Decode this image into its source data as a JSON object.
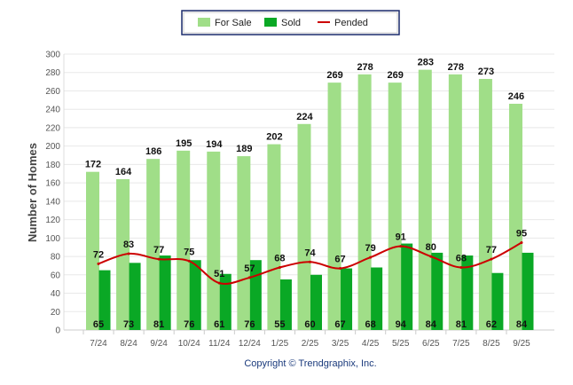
{
  "chart_data": {
    "type": "bar",
    "title": "",
    "xlabel": "",
    "ylabel": "Number of Homes",
    "ylim": [
      0,
      300
    ],
    "yticks": [
      0,
      20,
      40,
      60,
      80,
      100,
      120,
      140,
      160,
      180,
      200,
      220,
      240,
      260,
      280,
      300
    ],
    "grid": true,
    "legend_position": "top-center",
    "categories": [
      "7/24",
      "8/24",
      "9/24",
      "10/24",
      "11/24",
      "12/24",
      "1/25",
      "2/25",
      "3/25",
      "4/25",
      "5/25",
      "6/25",
      "7/25",
      "8/25",
      "9/25"
    ],
    "series": [
      {
        "name": "For Sale",
        "type": "bar",
        "color": "#a0de88",
        "values": [
          172,
          164,
          186,
          195,
          194,
          189,
          202,
          224,
          269,
          278,
          269,
          283,
          278,
          273,
          246
        ]
      },
      {
        "name": "Sold",
        "type": "bar",
        "color": "#0aa825",
        "values": [
          65,
          73,
          81,
          76,
          61,
          76,
          55,
          60,
          67,
          68,
          94,
          84,
          81,
          62,
          84
        ]
      },
      {
        "name": "Pended",
        "type": "line",
        "color": "#cc0000",
        "values": [
          72,
          83,
          77,
          75,
          51,
          57,
          68,
          74,
          67,
          79,
          91,
          80,
          68,
          77,
          95
        ]
      }
    ]
  },
  "footer": {
    "copyright": "Copyright © Trendgraphix, Inc."
  }
}
